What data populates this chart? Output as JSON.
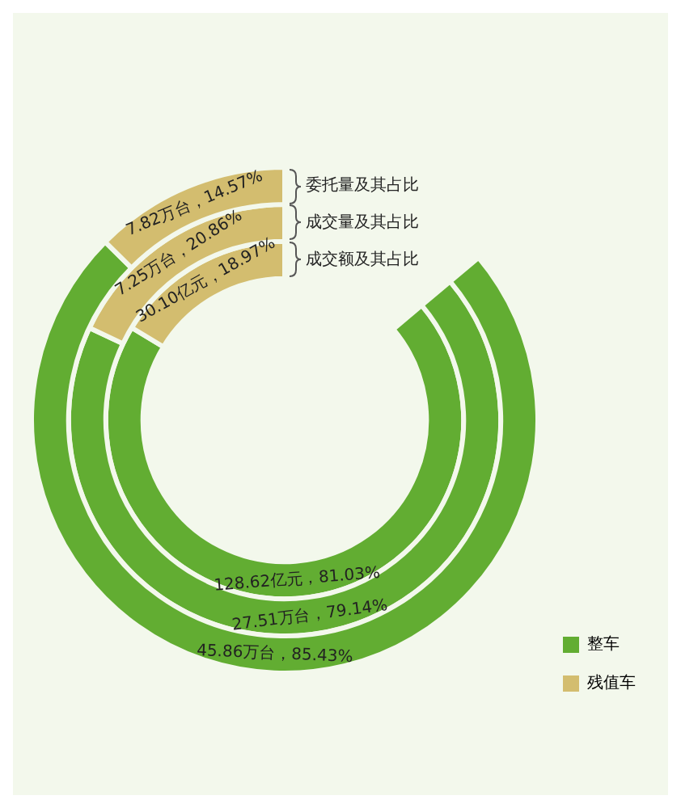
{
  "chart_data": {
    "type": "donut",
    "categories": [
      "整车",
      "残值车"
    ],
    "colors": [
      "#62ad32",
      "#d3bd6f"
    ],
    "series": [
      {
        "name": "委托量及其占比",
        "values": [
          85.43,
          14.57
        ],
        "value_labels": [
          "45.86万台，85.43%",
          "7.82万台，14.57%"
        ]
      },
      {
        "name": "成交量及其占比",
        "values": [
          79.14,
          20.86
        ],
        "value_labels": [
          "27.51万台，79.14%",
          "7.25万台，20.86%"
        ]
      },
      {
        "name": "成交额及其占比",
        "values": [
          81.03,
          18.97
        ],
        "value_labels": [
          "128.62亿元，81.03%",
          "30.10亿元，18.97%"
        ]
      }
    ],
    "legend": "bottom right"
  }
}
